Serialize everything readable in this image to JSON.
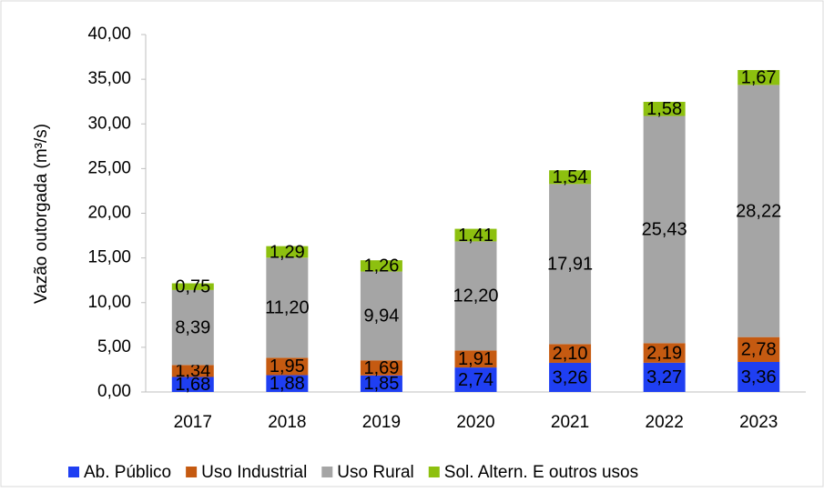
{
  "chart_data": {
    "type": "stacked_bar",
    "y_label": "Vazão outorgada (m³/s)",
    "categories": [
      "2017",
      "2018",
      "2019",
      "2020",
      "2021",
      "2022",
      "2023"
    ],
    "series": [
      {
        "name": "Ab. Público",
        "color": "#1f3ff2",
        "label_color": "#ffffff",
        "values": [
          1.68,
          1.88,
          1.85,
          2.74,
          3.26,
          3.27,
          3.36
        ],
        "value_labels": [
          "1,68",
          "1,88",
          "1,85",
          "2,74",
          "3,26",
          "3,27",
          "3,36"
        ]
      },
      {
        "name": "Uso Industrial",
        "color": "#c55a11",
        "label_color": "#000000",
        "values": [
          1.34,
          1.95,
          1.69,
          1.91,
          2.1,
          2.19,
          2.78
        ],
        "value_labels": [
          "1,34",
          "1,95",
          "1,69",
          "1,91",
          "2,10",
          "2,19",
          "2,78"
        ]
      },
      {
        "name": "Uso Rural",
        "color": "#a5a5a5",
        "label_color": "#000000",
        "values": [
          8.39,
          11.2,
          9.94,
          12.2,
          17.91,
          25.43,
          28.22
        ],
        "value_labels": [
          "8,39",
          "11,20",
          "9,94",
          "12,20",
          "17,91",
          "25,43",
          "28,22"
        ]
      },
      {
        "name": "Sol. Altern. E outros usos",
        "color": "#8dc00f",
        "label_color": "#000000",
        "values": [
          0.75,
          1.29,
          1.26,
          1.41,
          1.54,
          1.58,
          1.67
        ],
        "value_labels": [
          "0,75",
          "1,29",
          "1,26",
          "1,41",
          "1,54",
          "1,58",
          "1,67"
        ]
      }
    ],
    "ylim": [
      0,
      40
    ],
    "yticks": [
      {
        "value": 0,
        "label": "0,00"
      },
      {
        "value": 5,
        "label": "5,00"
      },
      {
        "value": 10,
        "label": "10,00"
      },
      {
        "value": 15,
        "label": "15,00"
      },
      {
        "value": 20,
        "label": "20,00"
      },
      {
        "value": 25,
        "label": "25,00"
      },
      {
        "value": 30,
        "label": "30,00"
      },
      {
        "value": 35,
        "label": "35,00"
      },
      {
        "value": 40,
        "label": "40,00"
      }
    ],
    "grid": false,
    "legend": "bottom"
  }
}
